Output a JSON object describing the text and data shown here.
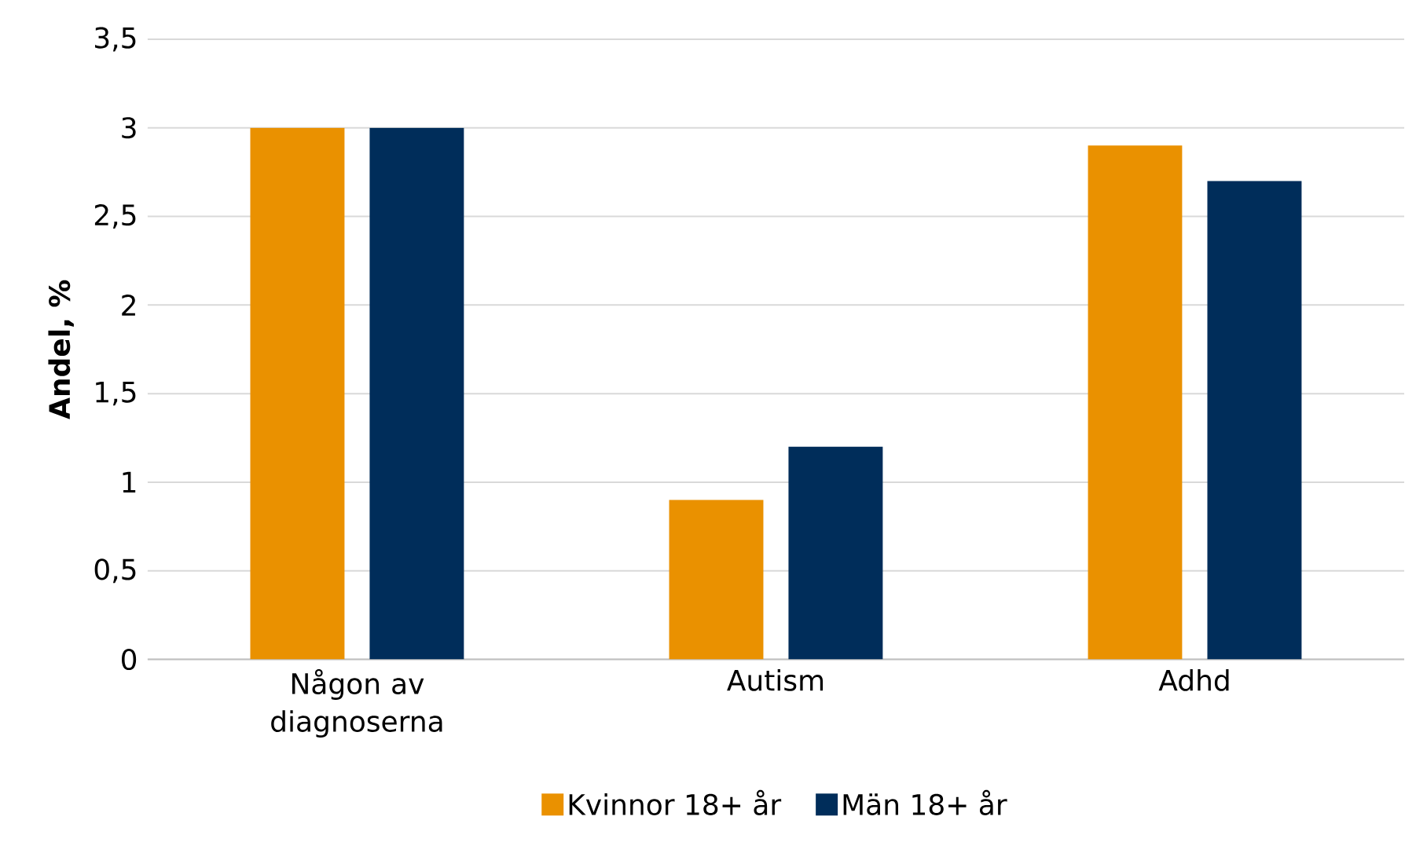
{
  "chart_data": {
    "type": "bar",
    "ylabel": "Andel, %",
    "categories": [
      "Någon av diagnoserna",
      "Autism",
      "Adhd"
    ],
    "series": [
      {
        "name": "Kvinnor 18+ år",
        "color": "#ea9100",
        "values": [
          3,
          0.9,
          2.9
        ]
      },
      {
        "name": "Män 18+ år",
        "color": "#002d5a",
        "values": [
          3,
          1.2,
          2.7
        ]
      }
    ],
    "ylim": [
      0,
      3.5
    ],
    "yticks": [
      0,
      {
        "value": 0.5,
        "label": "0,5"
      },
      1,
      {
        "value": 1.5,
        "label": "1,5"
      },
      2,
      {
        "value": 2.5,
        "label": "2,5"
      },
      3,
      {
        "value": 3.5,
        "label": "3,5"
      }
    ],
    "grid": "y",
    "legend": "bottom"
  }
}
